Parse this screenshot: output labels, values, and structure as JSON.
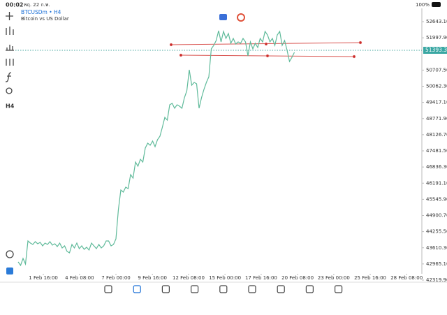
{
  "status_bar": {
    "time": "00:02",
    "date": "พฤ. 22 ก.พ.",
    "battery": "100%"
  },
  "symbol": {
    "name": "BTCUSDm • H4",
    "description": "Bitcoin vs US Dollar"
  },
  "toolbar": {
    "timeframe": "H4"
  },
  "current_price_label": "51393.35",
  "chart_data": {
    "type": "line",
    "color": "#5fba9a",
    "xlim": [
      0,
      165.7
    ],
    "xticks": [
      {
        "value": 10.3,
        "label": "1 Feb 16:00"
      },
      {
        "value": 25.1,
        "label": "4 Feb 08:00"
      },
      {
        "value": 40,
        "label": "7 Feb 00:00"
      },
      {
        "value": 54.9,
        "label": "9 Feb 16:00"
      },
      {
        "value": 69.7,
        "label": "12 Feb 08:00"
      },
      {
        "value": 84.6,
        "label": "15 Feb 00:00"
      },
      {
        "value": 99.4,
        "label": "17 Feb 16:00"
      },
      {
        "value": 114.3,
        "label": "20 Feb 08:00"
      },
      {
        "value": 129.1,
        "label": "23 Feb 00:00"
      },
      {
        "value": 144,
        "label": "25 Feb 16:00"
      },
      {
        "value": 158.9,
        "label": "28 Feb 08:00"
      }
    ],
    "ylim": [
      42319.9,
      52643.1
    ],
    "yticks": [
      {
        "value": 52643.1,
        "label": "52643.10"
      },
      {
        "value": 51997.9,
        "label": "51997.90"
      },
      {
        "value": 50707.5,
        "label": "50707.50"
      },
      {
        "value": 50062.3,
        "label": "50062.30"
      },
      {
        "value": 49417.1,
        "label": "49417.10"
      },
      {
        "value": 48771.9,
        "label": "48771.90"
      },
      {
        "value": 48126.7,
        "label": "48126.70"
      },
      {
        "value": 47481.5,
        "label": "47481.50"
      },
      {
        "value": 46836.3,
        "label": "46836.30"
      },
      {
        "value": 46191.1,
        "label": "46191.10"
      },
      {
        "value": 45545.9,
        "label": "45545.90"
      },
      {
        "value": 44900.7,
        "label": "44900.70"
      },
      {
        "value": 44255.5,
        "label": "44255.50"
      },
      {
        "value": 43610.3,
        "label": "43610.30"
      },
      {
        "value": 42965.1,
        "label": "42965.10"
      },
      {
        "value": 42319.9,
        "label": "42319.90"
      }
    ],
    "values": [
      43046,
      42906,
      43185,
      42962,
      43882,
      43799,
      43743,
      43855,
      43771,
      43827,
      43687,
      43799,
      43743,
      43855,
      43715,
      43771,
      43659,
      43799,
      43603,
      43687,
      43464,
      43408,
      43743,
      43603,
      43799,
      43576,
      43687,
      43548,
      43631,
      43520,
      43799,
      43687,
      43576,
      43743,
      43603,
      43687,
      43882,
      43882,
      43687,
      43743,
      43966,
      45138,
      45919,
      45835,
      46031,
      45975,
      46533,
      46393,
      47035,
      46868,
      47147,
      47035,
      47593,
      47788,
      47705,
      47872,
      47649,
      47928,
      48067,
      48430,
      48821,
      48709,
      49323,
      49379,
      49183,
      49323,
      49267,
      49183,
      49602,
      49881,
      50718,
      50104,
      50216,
      50160,
      49183,
      49602,
      49937,
      50216,
      50439,
      51555,
      51694,
      51890,
      52280,
      51834,
      52252,
      51973,
      52169,
      51778,
      51973,
      51750,
      51834,
      51778,
      51973,
      51834,
      51276,
      51834,
      51555,
      51778,
      51611,
      51973,
      51834,
      52252,
      52113,
      51834,
      51973,
      51694,
      52113,
      52252,
      51694,
      51890,
      51499,
      51053,
      51220,
      51415
    ]
  }
}
